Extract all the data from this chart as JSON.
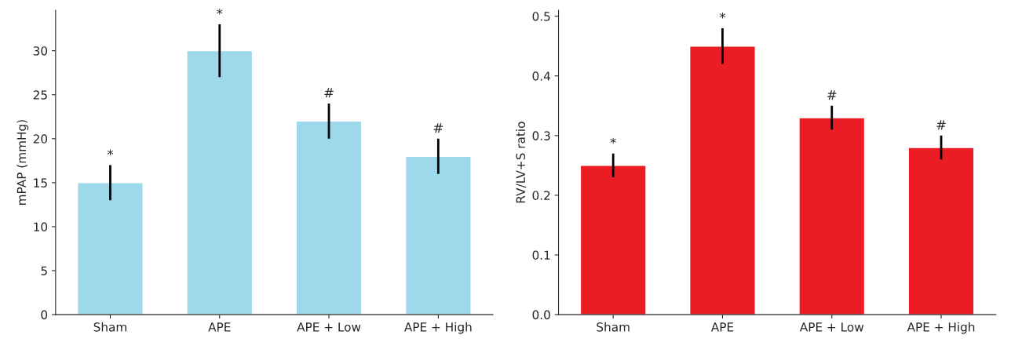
{
  "chart_data": [
    {
      "type": "bar",
      "ylabel": "mPAP (mmHg)",
      "categories": [
        "Sham",
        "APE",
        "APE + Low",
        "APE + High"
      ],
      "values": [
        15,
        30,
        22,
        18
      ],
      "errors": [
        2,
        3,
        2,
        2
      ],
      "color": "#9dd9ea",
      "ylim": [
        0,
        34.6
      ],
      "yticks": [
        0,
        5,
        10,
        15,
        20,
        25,
        30
      ],
      "grid": false,
      "legend": false,
      "annotations": [
        {
          "text": "*",
          "x": "Sham",
          "y": 17
        },
        {
          "text": "*",
          "x": "APE",
          "y": 33
        },
        {
          "text": "#",
          "x": "APE + Low",
          "y": 24
        },
        {
          "text": "#",
          "x": "APE + High",
          "y": 20
        }
      ]
    },
    {
      "type": "bar",
      "ylabel": "RV/LV+S ratio",
      "categories": [
        "Sham",
        "APE",
        "APE + Low",
        "APE + High"
      ],
      "values": [
        0.25,
        0.45,
        0.33,
        0.28
      ],
      "errors": [
        0.02,
        0.03,
        0.02,
        0.02
      ],
      "color": "#ec1c24",
      "ylim": [
        0,
        0.51
      ],
      "yticks": [
        {
          "value": 0,
          "label": "0.0"
        },
        0.1,
        0.2,
        0.3,
        0.4,
        0.5
      ],
      "grid": false,
      "legend": false,
      "annotations": [
        {
          "text": "*",
          "x": "Sham",
          "y": 0.27
        },
        {
          "text": "*",
          "x": "APE",
          "y": 0.48
        },
        {
          "text": "#",
          "x": "APE + Low",
          "y": 0.35
        },
        {
          "text": "#",
          "x": "APE + High",
          "y": 0.3
        }
      ]
    }
  ]
}
